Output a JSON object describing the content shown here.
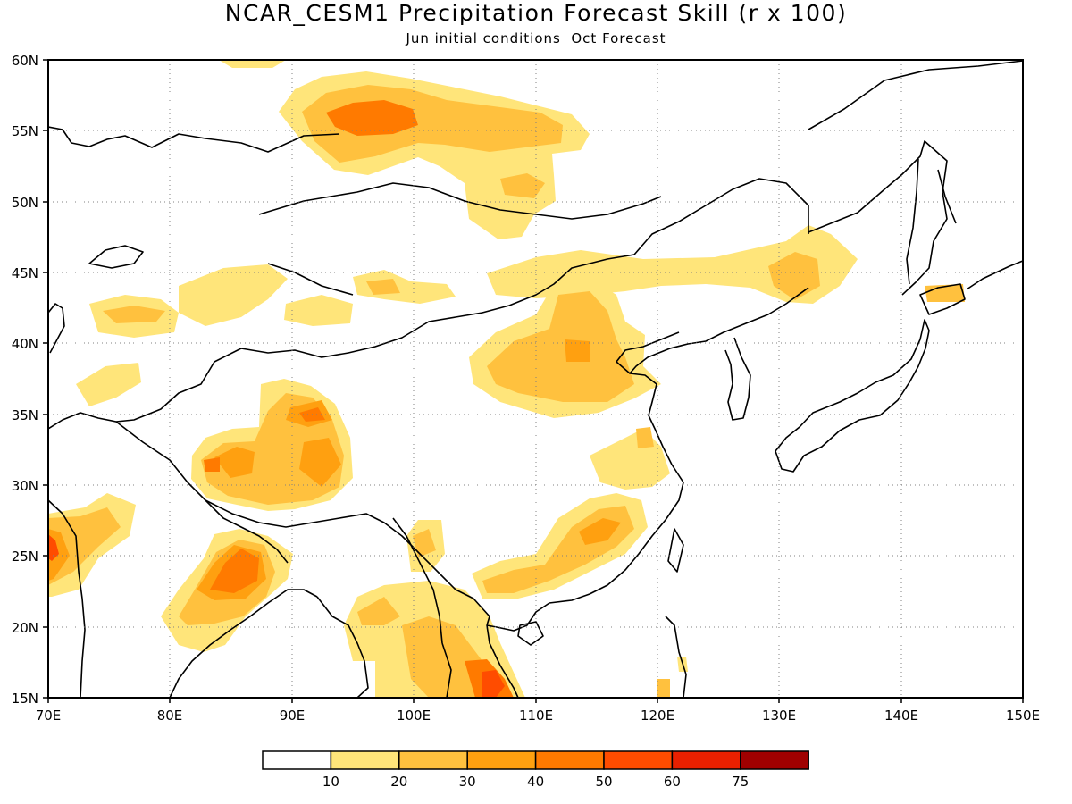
{
  "title": "NCAR_CESM1 Precipitation Forecast Skill (r x 100)",
  "subtitle": "Jun initial conditions  Oct Forecast",
  "map": {
    "lon_range": [
      70,
      150
    ],
    "lat_range": [
      15,
      60
    ],
    "lon_labels": [
      "70E",
      "80E",
      "90E",
      "100E",
      "110E",
      "120E",
      "130E",
      "140E",
      "150E"
    ],
    "lat_labels": [
      "60N",
      "55N",
      "50N",
      "45N",
      "40N",
      "35N",
      "30N",
      "25N",
      "20N",
      "15N"
    ],
    "grid": "dotted",
    "coastline_color": "#000000"
  },
  "legend": {
    "colors": [
      "#ffffff",
      "#ffe57a",
      "#ffc13e",
      "#ffa010",
      "#ff7a00",
      "#ff4c00",
      "#e82000",
      "#a00000"
    ],
    "labels": [
      "10",
      "20",
      "30",
      "40",
      "50",
      "60",
      "75"
    ]
  }
}
